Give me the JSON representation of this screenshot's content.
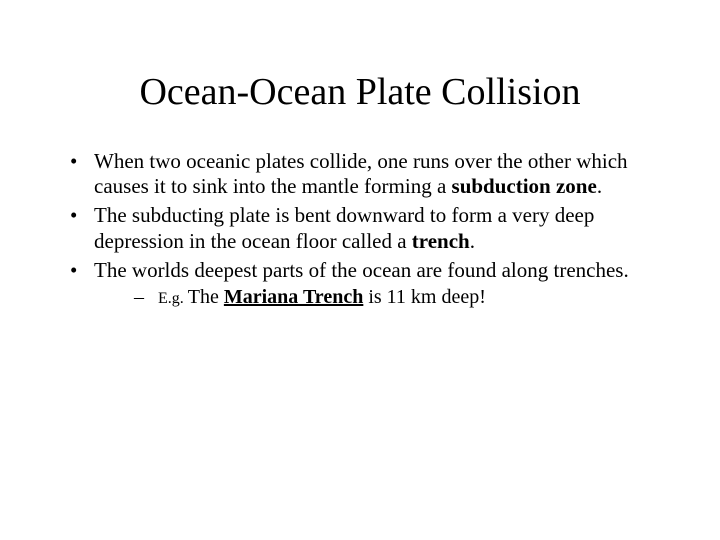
{
  "title": "Ocean-Ocean Plate Collision",
  "bullets": [
    {
      "pre": "When two oceanic plates collide, one runs over the other which causes it to sink into the mantle forming a ",
      "bold": "subduction zone",
      "post": "."
    },
    {
      "pre": "The subducting plate is bent downward to form a very deep depression in the ocean floor called a ",
      "bold": "trench",
      "post": "."
    },
    {
      "pre": "The worlds deepest parts of the ocean are found along trenches.",
      "bold": "",
      "post": ""
    }
  ],
  "sub": {
    "prefix": "E.g. ",
    "pre": "The ",
    "boldunder": "Mariana Trench",
    "post": " is 11 km deep!"
  }
}
